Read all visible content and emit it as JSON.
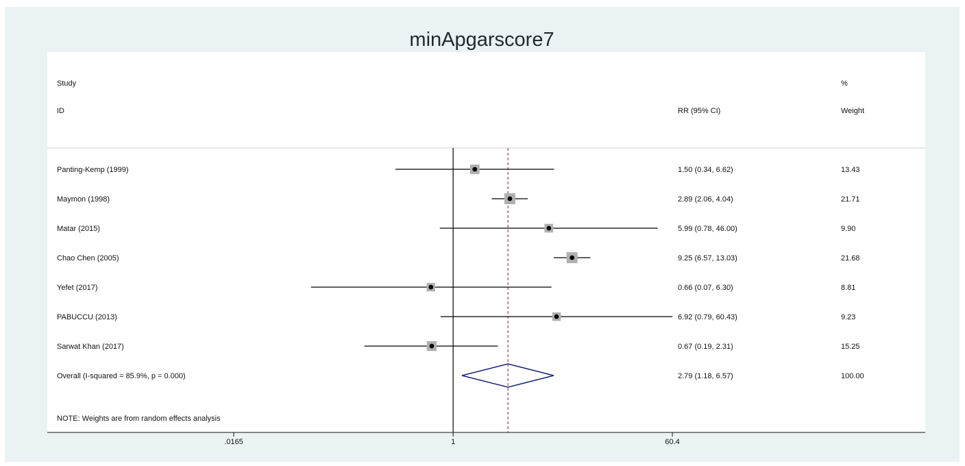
{
  "chart_data": {
    "type": "forest",
    "title": "minApgarscore7",
    "header": {
      "study_line1": "Study",
      "study_line2": "ID",
      "effect_label": "RR (95% CI)",
      "weight_line1": "%",
      "weight_line2": "Weight"
    },
    "x_scale": "log",
    "xlim": [
      0.0165,
      60.4
    ],
    "x_ticks": [
      {
        "value": 0.0165,
        "label": ".0165"
      },
      {
        "value": 1,
        "label": "1"
      },
      {
        "value": 60.4,
        "label": "60.4"
      }
    ],
    "null_line": 1,
    "pooled_line": 2.79,
    "studies": [
      {
        "name": "Panting-Kemp (1999)",
        "rr": 1.5,
        "lo": 0.34,
        "hi": 6.62,
        "ci_text": "1.50 (0.34, 6.62)",
        "weight": 13.43,
        "weight_text": "13.43"
      },
      {
        "name": "Maymon (1998)",
        "rr": 2.89,
        "lo": 2.06,
        "hi": 4.04,
        "ci_text": "2.89 (2.06, 4.04)",
        "weight": 21.71,
        "weight_text": "21.71"
      },
      {
        "name": "Matar (2015)",
        "rr": 5.99,
        "lo": 0.78,
        "hi": 46.0,
        "ci_text": "5.99 (0.78, 46.00)",
        "weight": 9.9,
        "weight_text": "9.90"
      },
      {
        "name": "Chao Chen (2005)",
        "rr": 9.25,
        "lo": 6.57,
        "hi": 13.03,
        "ci_text": "9.25 (6.57, 13.03)",
        "weight": 21.68,
        "weight_text": "21.68"
      },
      {
        "name": "Yefet (2017)",
        "rr": 0.66,
        "lo": 0.07,
        "hi": 6.3,
        "ci_text": "0.66 (0.07, 6.30)",
        "weight": 8.81,
        "weight_text": "8.81"
      },
      {
        "name": "PABUCCU (2013)",
        "rr": 6.92,
        "lo": 0.79,
        "hi": 60.43,
        "ci_text": "6.92 (0.79, 60.43)",
        "weight": 9.23,
        "weight_text": "9.23"
      },
      {
        "name": "Sarwat Khan (2017)",
        "rr": 0.67,
        "lo": 0.19,
        "hi": 2.31,
        "ci_text": "0.67 (0.19, 2.31)",
        "weight": 15.25,
        "weight_text": "15.25"
      }
    ],
    "overall": {
      "label": "Overall  (I-squared = 85.9%, p = 0.000)",
      "rr": 2.79,
      "lo": 1.18,
      "hi": 6.57,
      "ci_text": "2.79 (1.18, 6.57)",
      "weight_text": "100.00"
    },
    "note": "NOTE: Weights are from random effects analysis",
    "colors": {
      "background": "#eaf2f3",
      "plot_area": "#ffffff",
      "diamond": "#1a237e",
      "pooled_line": "#8b1a1a",
      "weight_box": "#b0b0b0",
      "point": "#000000"
    }
  }
}
